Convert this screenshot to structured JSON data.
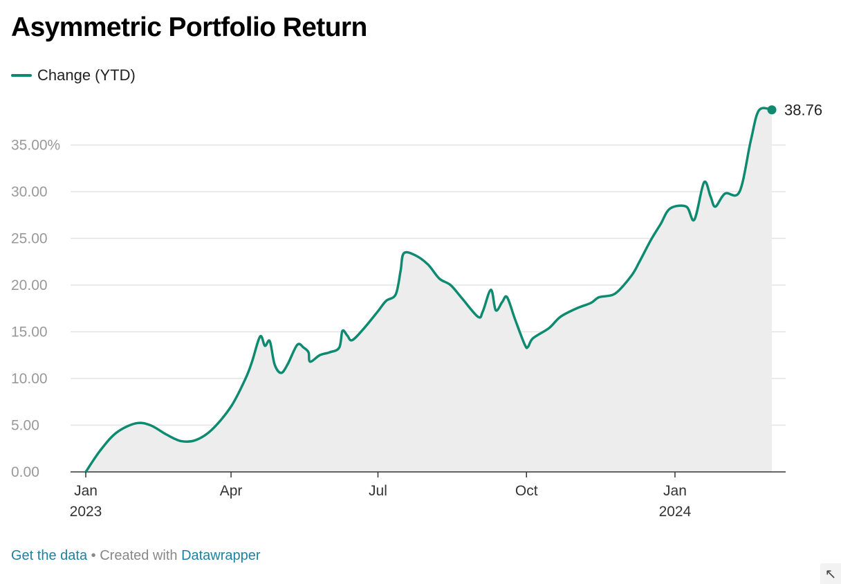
{
  "chart_data": {
    "type": "area",
    "title": "Asymmetric Portfolio Return",
    "series": [
      {
        "name": "Change (YTD)",
        "color": "#0d8a70",
        "points": [
          [
            "2023-01-01",
            0.0
          ],
          [
            "2023-01-10",
            2.3
          ],
          [
            "2023-01-20",
            4.2
          ],
          [
            "2023-02-01",
            5.2
          ],
          [
            "2023-02-10",
            5.0
          ],
          [
            "2023-02-20",
            4.0
          ],
          [
            "2023-03-01",
            3.3
          ],
          [
            "2023-03-10",
            3.4
          ],
          [
            "2023-03-20",
            4.5
          ],
          [
            "2023-04-01",
            7.0
          ],
          [
            "2023-04-10",
            10.0
          ],
          [
            "2023-04-14",
            11.8
          ],
          [
            "2023-04-19",
            14.5
          ],
          [
            "2023-04-22",
            13.5
          ],
          [
            "2023-04-25",
            14.0
          ],
          [
            "2023-04-28",
            11.5
          ],
          [
            "2023-05-02",
            10.6
          ],
          [
            "2023-05-06",
            11.5
          ],
          [
            "2023-05-12",
            13.6
          ],
          [
            "2023-05-16",
            13.3
          ],
          [
            "2023-05-19",
            12.8
          ],
          [
            "2023-05-20",
            11.8
          ],
          [
            "2023-05-26",
            12.5
          ],
          [
            "2023-06-01",
            12.8
          ],
          [
            "2023-06-07",
            13.3
          ],
          [
            "2023-06-09",
            15.1
          ],
          [
            "2023-06-12",
            14.6
          ],
          [
            "2023-06-15",
            14.1
          ],
          [
            "2023-06-22",
            15.3
          ],
          [
            "2023-07-01",
            17.2
          ],
          [
            "2023-07-06",
            18.3
          ],
          [
            "2023-07-12",
            19.0
          ],
          [
            "2023-07-15",
            21.5
          ],
          [
            "2023-07-17",
            23.4
          ],
          [
            "2023-07-24",
            23.2
          ],
          [
            "2023-08-01",
            22.2
          ],
          [
            "2023-08-08",
            20.7
          ],
          [
            "2023-08-15",
            20.0
          ],
          [
            "2023-08-22",
            18.6
          ],
          [
            "2023-09-01",
            16.6
          ],
          [
            "2023-09-04",
            17.2
          ],
          [
            "2023-09-09",
            19.5
          ],
          [
            "2023-09-12",
            17.3
          ],
          [
            "2023-09-16",
            18.2
          ],
          [
            "2023-09-19",
            18.7
          ],
          [
            "2023-09-24",
            16.3
          ],
          [
            "2023-09-30",
            13.6
          ],
          [
            "2023-10-02",
            13.4
          ],
          [
            "2023-10-05",
            14.3
          ],
          [
            "2023-10-15",
            15.4
          ],
          [
            "2023-10-22",
            16.6
          ],
          [
            "2023-11-01",
            17.5
          ],
          [
            "2023-11-10",
            18.1
          ],
          [
            "2023-11-15",
            18.7
          ],
          [
            "2023-11-25",
            19.1
          ],
          [
            "2023-12-05",
            21.0
          ],
          [
            "2023-12-10",
            22.5
          ],
          [
            "2023-12-17",
            24.8
          ],
          [
            "2023-12-23",
            26.5
          ],
          [
            "2023-12-29",
            28.2
          ],
          [
            "2024-01-08",
            28.4
          ],
          [
            "2024-01-13",
            27.0
          ],
          [
            "2024-01-19",
            31.0
          ],
          [
            "2024-01-23",
            29.5
          ],
          [
            "2024-01-26",
            28.4
          ],
          [
            "2024-02-01",
            29.8
          ],
          [
            "2024-02-10",
            30.0
          ],
          [
            "2024-02-17",
            35.5
          ],
          [
            "2024-02-22",
            38.7
          ],
          [
            "2024-03-01",
            38.76
          ]
        ]
      }
    ],
    "ylim": [
      0,
      40
    ],
    "xlim": [
      "2023-01-01",
      "2024-03-01"
    ],
    "yticks": [
      0,
      5,
      10,
      15,
      20,
      25,
      30,
      35
    ],
    "ytick_labels": [
      "0.00",
      "5.00",
      "10.00",
      "15.00",
      "20.00",
      "25.00",
      "30.00",
      "35.00%"
    ],
    "xticks": [
      {
        "date": "2023-01-01",
        "label": "Jan",
        "year": "2023"
      },
      {
        "date": "2023-04-01",
        "label": "Apr",
        "year": ""
      },
      {
        "date": "2023-07-01",
        "label": "Jul",
        "year": ""
      },
      {
        "date": "2023-10-01",
        "label": "Oct",
        "year": ""
      },
      {
        "date": "2024-01-01",
        "label": "Jan",
        "year": "2024"
      }
    ],
    "last_value_label": "38.76",
    "grid": true,
    "area_fill": "#ededed"
  },
  "footer": {
    "get_data": "Get the data",
    "separator": "•",
    "created_with": "Created with",
    "datawrapper": "Datawrapper"
  },
  "resize_icon": "↖"
}
